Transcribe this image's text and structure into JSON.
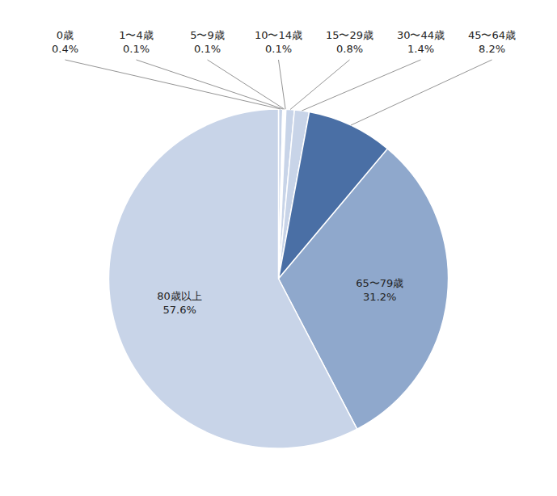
{
  "chart_data": {
    "type": "pie",
    "categories": [
      "0歳",
      "1〜4歳",
      "5〜9歳",
      "10〜14歳",
      "15〜29歳",
      "30〜44歳",
      "45〜64歳",
      "65〜79歳",
      "80歳以上"
    ],
    "values": [
      0.4,
      0.1,
      0.1,
      0.1,
      0.8,
      1.4,
      8.2,
      31.2,
      57.6
    ],
    "value_labels": [
      "0.4%",
      "0.1%",
      "0.1%",
      "0.1%",
      "0.8%",
      "1.4%",
      "8.2%",
      "31.2%",
      "57.6%"
    ],
    "colors": [
      "#c8d4e8",
      "#c8d4e8",
      "#4a6fa5",
      "#c8d4e8",
      "#c8d4e8",
      "#c8d4e8",
      "#4a6fa5",
      "#8fa8cc",
      "#c8d4e8"
    ],
    "data_labels": true
  }
}
